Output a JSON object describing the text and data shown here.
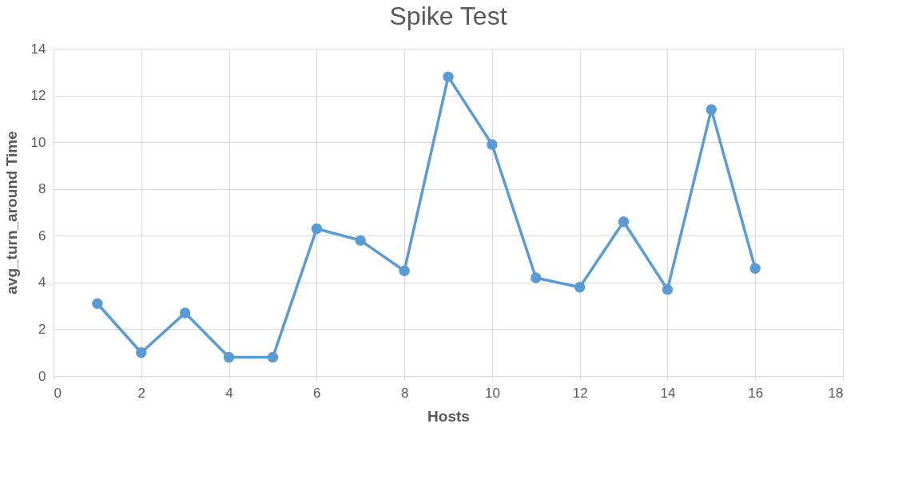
{
  "chart_data": {
    "type": "line",
    "title": "Spike Test",
    "xlabel": "Hosts",
    "ylabel": "avg_turn_around Time",
    "x": [
      1,
      2,
      3,
      4,
      5,
      6,
      7,
      8,
      9,
      10,
      11,
      12,
      13,
      14,
      15,
      16
    ],
    "series": [
      {
        "color": "#5b9bd5",
        "values": [
          3.1,
          1.0,
          2.7,
          0.8,
          0.8,
          6.3,
          5.8,
          4.5,
          12.8,
          9.9,
          4.2,
          3.8,
          6.6,
          3.7,
          11.4,
          4.6
        ]
      }
    ],
    "xlim": [
      0,
      18
    ],
    "xticks": [
      0,
      2,
      4,
      6,
      8,
      10,
      12,
      14,
      16,
      18
    ],
    "ylim": [
      0,
      14
    ],
    "yticks": [
      0,
      2,
      4,
      6,
      8,
      10,
      12,
      14
    ],
    "grid": true,
    "marker": "circle",
    "line_style": "solid",
    "legend": false
  }
}
